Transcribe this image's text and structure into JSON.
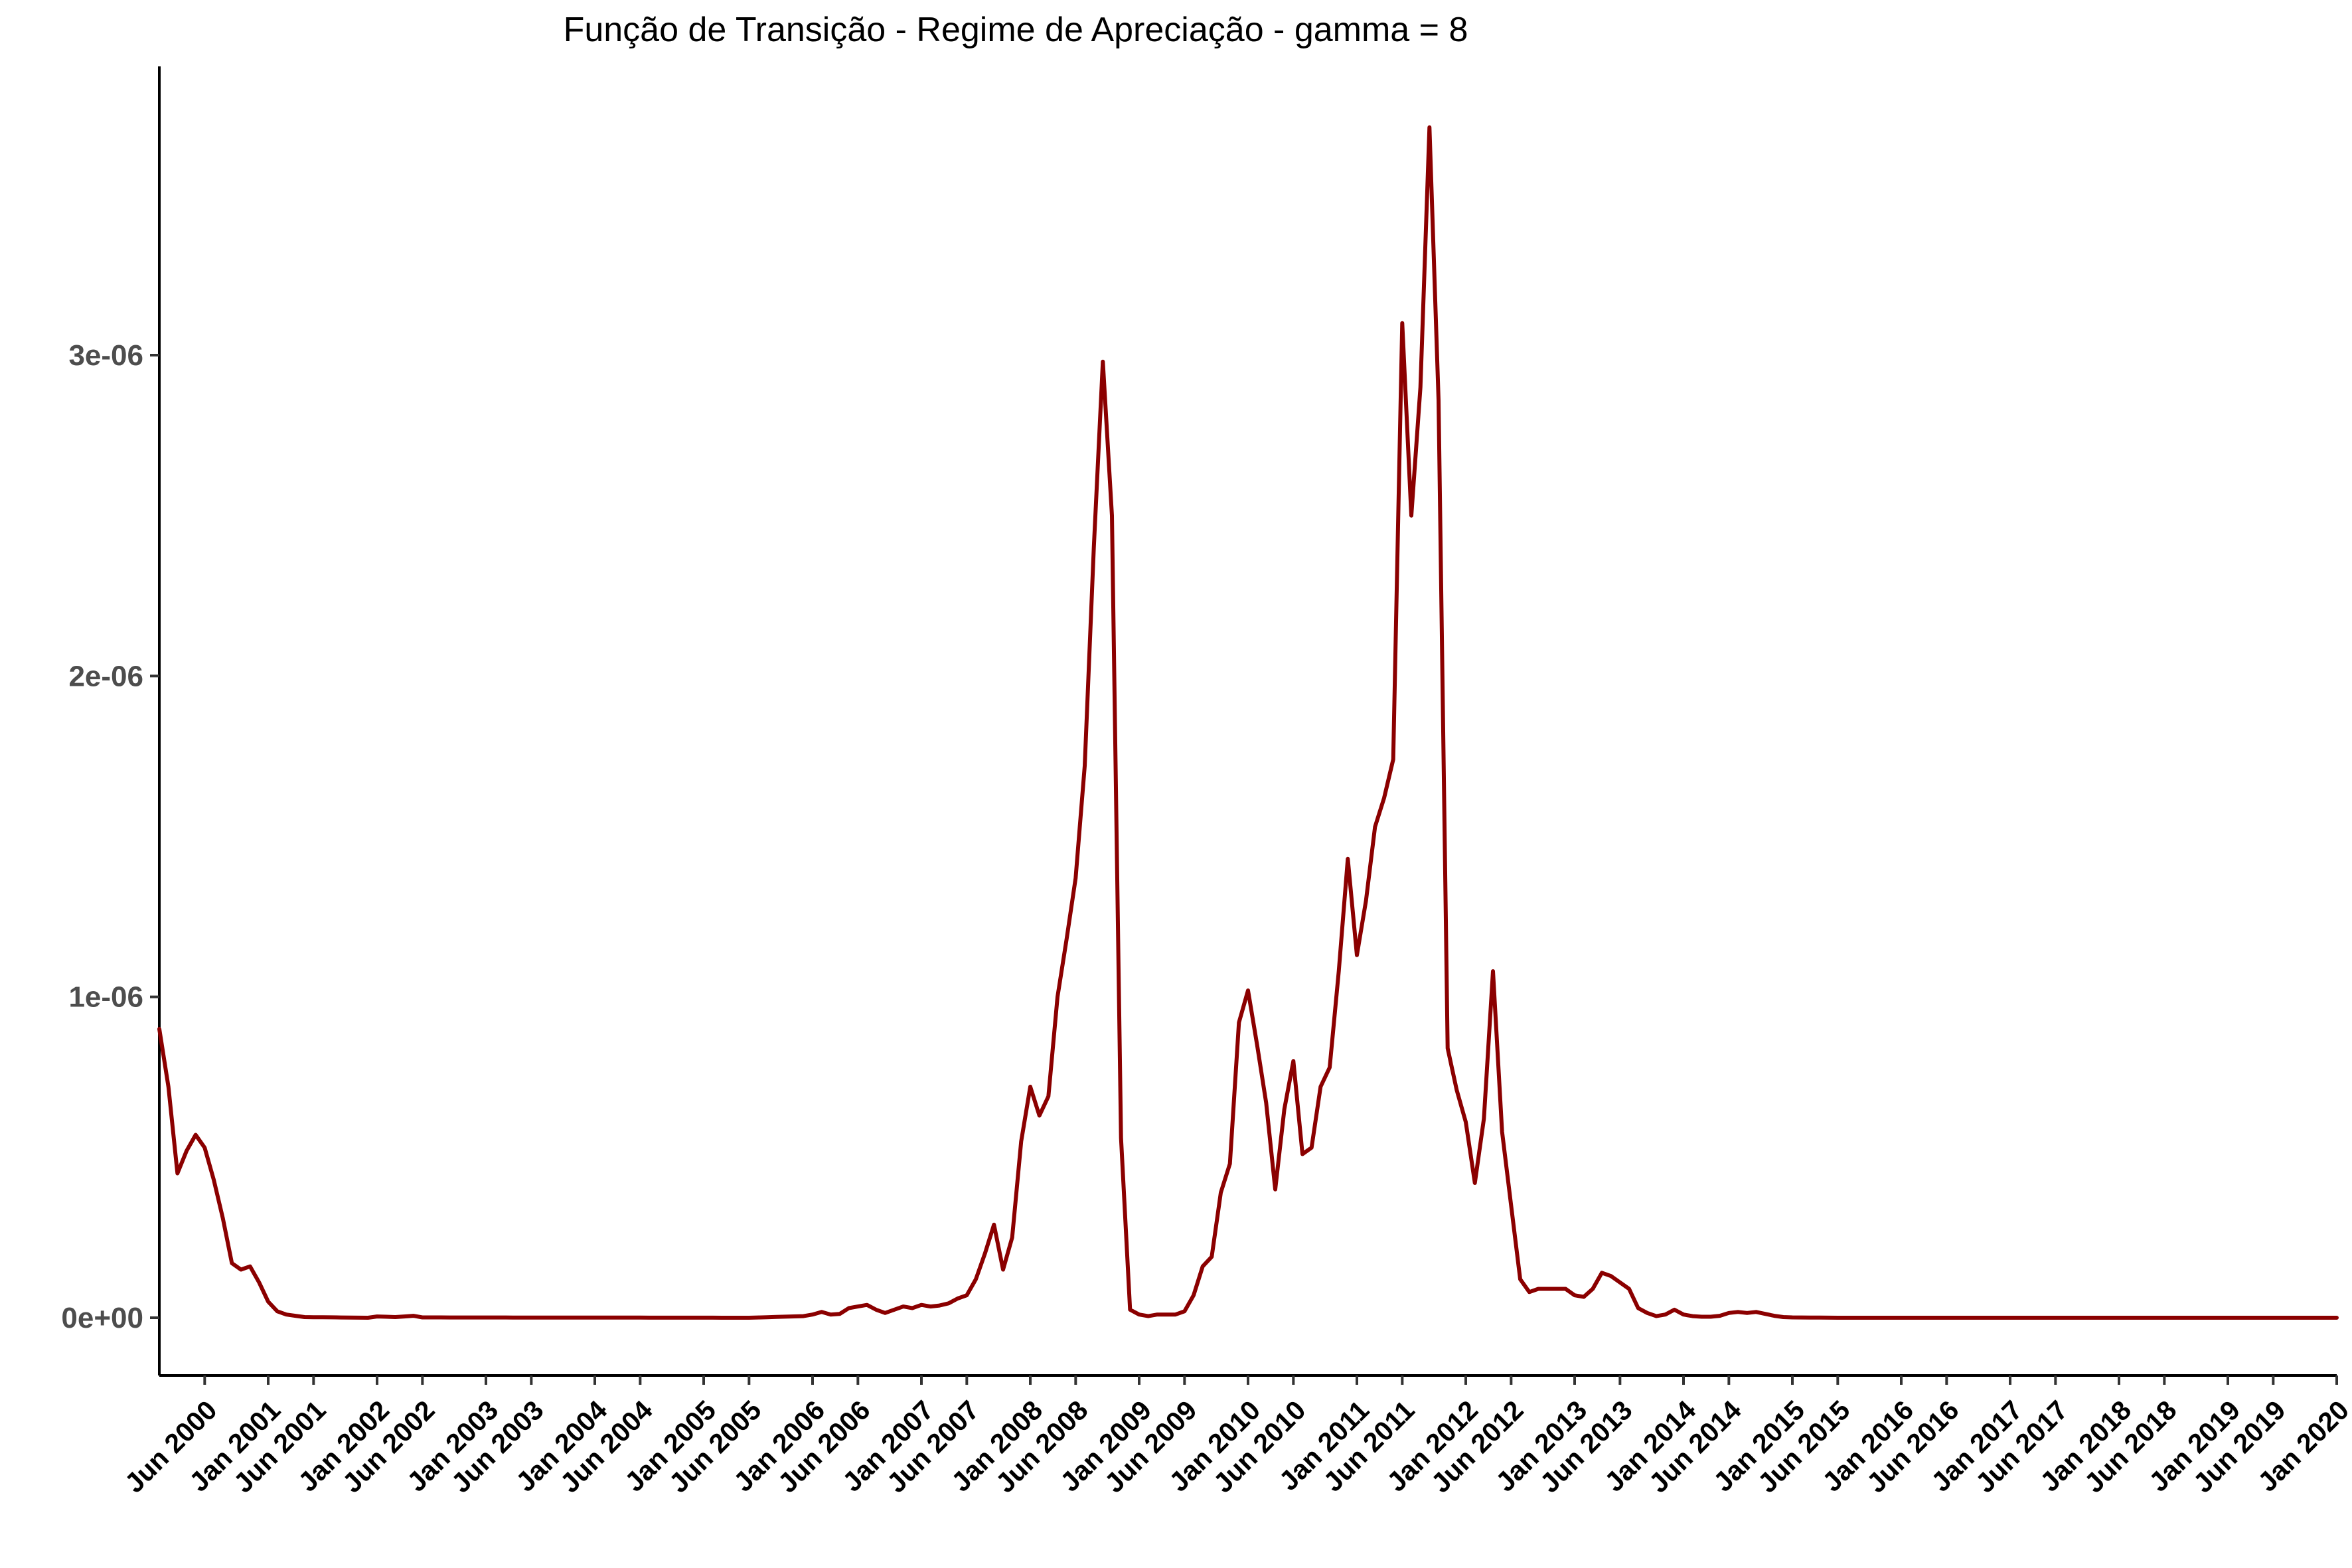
{
  "chart_data": {
    "type": "line",
    "title": "Função de Transição - Regime de Apreciação - gamma = 8",
    "xlabel": "",
    "ylabel": "",
    "x_start": "2000-01",
    "x_end": "2020-01",
    "frequency": "monthly",
    "ylim": [
      -1.8e-07,
      3.9e-06
    ],
    "yticks": [
      0,
      1e-06,
      2e-06,
      3e-06
    ],
    "ytick_labels": [
      "0e+00",
      "1e-06",
      "2e-06",
      "3e-06"
    ],
    "xtick_labels": [
      "Jun 2000",
      "Jan 2001",
      "Jun 2001",
      "Jan 2002",
      "Jun 2002",
      "Jan 2003",
      "Jun 2003",
      "Jan 2004",
      "Jun 2004",
      "Jan 2005",
      "Jun 2005",
      "Jan 2006",
      "Jun 2006",
      "Jan 2007",
      "Jun 2007",
      "Jan 2008",
      "Jun 2008",
      "Jan 2009",
      "Jun 2009",
      "Jan 2010",
      "Jun 2010",
      "Jan 2011",
      "Jun 2011",
      "Jan 2012",
      "Jun 2012",
      "Jan 2013",
      "Jun 2013",
      "Jan 2014",
      "Jun 2014",
      "Jan 2015",
      "Jun 2015",
      "Jan 2016",
      "Jun 2016",
      "Jan 2017",
      "Jun 2017",
      "Jan 2018",
      "Jun 2018",
      "Jan 2019",
      "Jun 2019",
      "Jan 2020"
    ],
    "grid": false,
    "line_color": "#8B0000",
    "series_keypoints": [
      [
        "2000-01",
        9e-07
      ],
      [
        "2000-02",
        7.2e-07
      ],
      [
        "2000-03",
        4.5e-07
      ],
      [
        "2000-04",
        5.2e-07
      ],
      [
        "2000-05",
        5.7e-07
      ],
      [
        "2000-06",
        5.3e-07
      ],
      [
        "2000-07",
        4.3e-07
      ],
      [
        "2000-08",
        3.1e-07
      ],
      [
        "2000-09",
        1.7e-07
      ],
      [
        "2000-10",
        1.5e-07
      ],
      [
        "2000-11",
        1.6e-07
      ],
      [
        "2000-12",
        1.1e-07
      ],
      [
        "2001-01",
        5e-08
      ],
      [
        "2001-02",
        2e-08
      ],
      [
        "2001-03",
        1e-08
      ],
      [
        "2001-05",
        2e-09
      ],
      [
        "2001-12",
        0
      ],
      [
        "2002-01",
        4e-09
      ],
      [
        "2002-03",
        2e-09
      ],
      [
        "2002-05",
        6e-09
      ],
      [
        "2002-06",
        1e-09
      ],
      [
        "2005-06",
        0
      ],
      [
        "2005-12",
        5e-09
      ],
      [
        "2006-01",
        1e-08
      ],
      [
        "2006-02",
        1.8e-08
      ],
      [
        "2006-03",
        1e-08
      ],
      [
        "2006-04",
        1.2e-08
      ],
      [
        "2006-05",
        3e-08
      ],
      [
        "2006-06",
        3.5e-08
      ],
      [
        "2006-07",
        4e-08
      ],
      [
        "2006-08",
        2.5e-08
      ],
      [
        "2006-09",
        1.5e-08
      ],
      [
        "2006-10",
        2.5e-08
      ],
      [
        "2006-11",
        3.5e-08
      ],
      [
        "2006-12",
        3e-08
      ],
      [
        "2007-01",
        4e-08
      ],
      [
        "2007-02",
        3.5e-08
      ],
      [
        "2007-03",
        3.8e-08
      ],
      [
        "2007-04",
        4.5e-08
      ],
      [
        "2007-05",
        6e-08
      ],
      [
        "2007-06",
        7e-08
      ],
      [
        "2007-07",
        1.2e-07
      ],
      [
        "2007-08",
        2e-07
      ],
      [
        "2007-09",
        2.9e-07
      ],
      [
        "2007-10",
        1.5e-07
      ],
      [
        "2007-11",
        2.5e-07
      ],
      [
        "2007-12",
        5.5e-07
      ],
      [
        "2008-01",
        7.2e-07
      ],
      [
        "2008-02",
        6.3e-07
      ],
      [
        "2008-03",
        6.9e-07
      ],
      [
        "2008-04",
        1e-06
      ],
      [
        "2008-05",
        1.18e-06
      ],
      [
        "2008-06",
        1.37e-06
      ],
      [
        "2008-07",
        1.72e-06
      ],
      [
        "2008-08",
        2.4e-06
      ],
      [
        "2008-09",
        2.98e-06
      ],
      [
        "2008-10",
        2.5e-06
      ],
      [
        "2008-11",
        5.6e-07
      ],
      [
        "2008-12",
        2.5e-08
      ],
      [
        "2009-01",
        1e-08
      ],
      [
        "2009-02",
        5e-09
      ],
      [
        "2009-03",
        1e-08
      ],
      [
        "2009-04",
        1e-08
      ],
      [
        "2009-05",
        1e-08
      ],
      [
        "2009-06",
        2e-08
      ],
      [
        "2009-07",
        7e-08
      ],
      [
        "2009-08",
        1.6e-07
      ],
      [
        "2009-09",
        1.9e-07
      ],
      [
        "2009-10",
        3.9e-07
      ],
      [
        "2009-11",
        4.8e-07
      ],
      [
        "2009-12",
        9.2e-07
      ],
      [
        "2010-01",
        1.02e-06
      ],
      [
        "2010-02",
        8.5e-07
      ],
      [
        "2010-03",
        6.7e-07
      ],
      [
        "2010-04",
        4e-07
      ],
      [
        "2010-05",
        6.5e-07
      ],
      [
        "2010-06",
        8e-07
      ],
      [
        "2010-07",
        5.1e-07
      ],
      [
        "2010-08",
        5.3e-07
      ],
      [
        "2010-09",
        7.2e-07
      ],
      [
        "2010-10",
        7.8e-07
      ],
      [
        "2010-11",
        1.08e-06
      ],
      [
        "2010-12",
        1.43e-06
      ],
      [
        "2011-01",
        1.13e-06
      ],
      [
        "2011-02",
        1.3e-06
      ],
      [
        "2011-03",
        1.53e-06
      ],
      [
        "2011-04",
        1.62e-06
      ],
      [
        "2011-05",
        1.74e-06
      ],
      [
        "2011-06",
        3.1e-06
      ],
      [
        "2011-07",
        2.5e-06
      ],
      [
        "2011-08",
        2.9e-06
      ],
      [
        "2011-09",
        3.71e-06
      ],
      [
        "2011-10",
        2.86e-06
      ],
      [
        "2011-11",
        8.4e-07
      ],
      [
        "2011-12",
        7.1e-07
      ],
      [
        "2012-01",
        6.1e-07
      ],
      [
        "2012-02",
        4.2e-07
      ],
      [
        "2012-03",
        6.2e-07
      ],
      [
        "2012-04",
        1.08e-06
      ],
      [
        "2012-05",
        5.8e-07
      ],
      [
        "2012-06",
        3.5e-07
      ],
      [
        "2012-07",
        1.2e-07
      ],
      [
        "2012-08",
        8e-08
      ],
      [
        "2012-09",
        9e-08
      ],
      [
        "2012-10",
        9e-08
      ],
      [
        "2012-11",
        9e-08
      ],
      [
        "2012-12",
        9e-08
      ],
      [
        "2013-01",
        7e-08
      ],
      [
        "2013-02",
        6.5e-08
      ],
      [
        "2013-03",
        9e-08
      ],
      [
        "2013-04",
        1.4e-07
      ],
      [
        "2013-05",
        1.3e-07
      ],
      [
        "2013-06",
        1.1e-07
      ],
      [
        "2013-07",
        9e-08
      ],
      [
        "2013-08",
        3e-08
      ],
      [
        "2013-09",
        1.5e-08
      ],
      [
        "2013-10",
        5e-09
      ],
      [
        "2013-11",
        1e-08
      ],
      [
        "2013-12",
        2.5e-08
      ],
      [
        "2014-01",
        1e-08
      ],
      [
        "2014-02",
        5e-09
      ],
      [
        "2014-03",
        3e-09
      ],
      [
        "2014-04",
        3e-09
      ],
      [
        "2014-05",
        6e-09
      ],
      [
        "2014-06",
        1.5e-08
      ],
      [
        "2014-07",
        1.8e-08
      ],
      [
        "2014-08",
        1.5e-08
      ],
      [
        "2014-09",
        1.8e-08
      ],
      [
        "2014-10",
        1.2e-08
      ],
      [
        "2014-11",
        6e-09
      ],
      [
        "2014-12",
        2e-09
      ],
      [
        "2015-01",
        1e-09
      ],
      [
        "2015-06",
        0
      ],
      [
        "2020-01",
        0
      ]
    ]
  }
}
